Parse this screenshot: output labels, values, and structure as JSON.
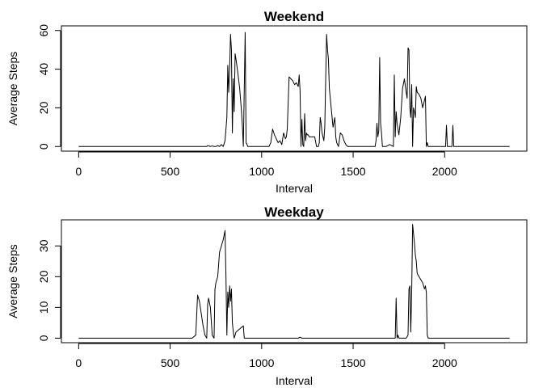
{
  "chart_data": [
    {
      "type": "line",
      "title": "Weekend",
      "xlabel": "Interval",
      "ylabel": "Average Steps",
      "xlim": [
        0,
        2355
      ],
      "ylim": [
        0,
        60
      ],
      "xticks": [
        0,
        500,
        1000,
        1500,
        2000
      ],
      "yticks": [
        0,
        20,
        40,
        60
      ],
      "grid": false,
      "series": [
        {
          "color": "#000000",
          "x": [
            0,
            700,
            705,
            720,
            730,
            740,
            750,
            760,
            770,
            780,
            790,
            800,
            810,
            815,
            820,
            825,
            830,
            835,
            840,
            845,
            850,
            855,
            860,
            870,
            880,
            890,
            895,
            900,
            905,
            910,
            915,
            920,
            925,
            930,
            1000,
            1040,
            1050,
            1060,
            1070,
            1080,
            1090,
            1100,
            1110,
            1120,
            1130,
            1135,
            1140,
            1150,
            1160,
            1170,
            1180,
            1190,
            1200,
            1205,
            1210,
            1215,
            1220,
            1225,
            1230,
            1235,
            1240,
            1245,
            1250,
            1255,
            1260,
            1270,
            1280,
            1290,
            1300,
            1310,
            1315,
            1320,
            1325,
            1330,
            1335,
            1340,
            1345,
            1350,
            1355,
            1360,
            1365,
            1370,
            1380,
            1390,
            1400,
            1405,
            1410,
            1420,
            1430,
            1440,
            1450,
            1460,
            1470,
            1480,
            1490,
            1500,
            1520,
            1540,
            1560,
            1580,
            1600,
            1620,
            1625,
            1630,
            1635,
            1640,
            1645,
            1650,
            1655,
            1660,
            1680,
            1700,
            1720,
            1725,
            1730,
            1735,
            1740,
            1750,
            1760,
            1770,
            1780,
            1790,
            1795,
            1800,
            1805,
            1810,
            1815,
            1820,
            1825,
            1830,
            1835,
            1840,
            1845,
            1850,
            1860,
            1870,
            1880,
            1890,
            1895,
            1900,
            1905,
            1910,
            1915,
            1920,
            1930,
            1950,
            1970,
            1990,
            2000,
            2005,
            2010,
            2015,
            2020,
            2030,
            2035,
            2040,
            2045,
            2050,
            2060,
            2100,
            2200,
            2300,
            2355
          ],
          "y": [
            0,
            0,
            0.5,
            0,
            0.3,
            0,
            0,
            0.5,
            0,
            1,
            0,
            3,
            15,
            42,
            28,
            40,
            58,
            50,
            7,
            35,
            18,
            48,
            45,
            38,
            30,
            18,
            10,
            0,
            30,
            59,
            2,
            1,
            0,
            0,
            0,
            0,
            2,
            9,
            6,
            4,
            2,
            3,
            1,
            7,
            4,
            5,
            9,
            36,
            35,
            34,
            32,
            33,
            31,
            37,
            29,
            0,
            14,
            1,
            0,
            17,
            3,
            7,
            6,
            6,
            5,
            5,
            5,
            5,
            0,
            0,
            2,
            15,
            12,
            7,
            5,
            3,
            10,
            35,
            58,
            50,
            45,
            30,
            20,
            10,
            15,
            5,
            2,
            0,
            7,
            6,
            3,
            1,
            0,
            0,
            0,
            0,
            0,
            0,
            0,
            0,
            0,
            0,
            3,
            12,
            5,
            8,
            46,
            12,
            7,
            0,
            0,
            1,
            0,
            37,
            5,
            18,
            12,
            6,
            15,
            30,
            35,
            28,
            25,
            51,
            50,
            20,
            15,
            32,
            0,
            20,
            18,
            15,
            31,
            28,
            27,
            25,
            20,
            24,
            26,
            0,
            2,
            0,
            0,
            0,
            0,
            0,
            0,
            0,
            0,
            0,
            11,
            0,
            0,
            0,
            0,
            0,
            11,
            0,
            0,
            0,
            0,
            0,
            0
          ]
        }
      ]
    },
    {
      "type": "line",
      "title": "Weekday",
      "xlabel": "Interval",
      "ylabel": "Average Steps",
      "xlim": [
        0,
        2355
      ],
      "ylim": [
        0,
        37
      ],
      "xticks": [
        0,
        500,
        1000,
        1500,
        2000
      ],
      "yticks": [
        0,
        10,
        20,
        30
      ],
      "grid": false,
      "series": [
        {
          "color": "#000000",
          "x": [
            0,
            600,
            620,
            630,
            640,
            650,
            660,
            670,
            680,
            690,
            700,
            705,
            710,
            720,
            730,
            740,
            745,
            750,
            760,
            770,
            780,
            790,
            800,
            805,
            810,
            815,
            820,
            825,
            830,
            835,
            840,
            845,
            850,
            855,
            860,
            880,
            900,
            905,
            910,
            1000,
            1100,
            1200,
            1210,
            1220,
            1300,
            1400,
            1500,
            1600,
            1700,
            1730,
            1735,
            1740,
            1745,
            1750,
            1760,
            1780,
            1790,
            1800,
            1805,
            1810,
            1815,
            1820,
            1825,
            1830,
            1835,
            1840,
            1845,
            1850,
            1860,
            1870,
            1880,
            1890,
            1895,
            1900,
            1905,
            1910,
            1915,
            1920,
            2000,
            2100,
            2200,
            2300,
            2355
          ],
          "y": [
            0,
            0,
            0,
            0.5,
            1,
            14,
            12,
            8,
            4,
            1,
            0,
            11,
            13,
            10,
            1,
            0,
            16,
            18,
            20,
            28,
            30,
            32,
            35,
            20,
            1,
            15,
            10,
            17,
            12,
            16,
            5,
            2,
            0,
            1,
            2,
            3,
            4,
            0,
            0,
            0,
            0,
            0,
            0.3,
            0,
            0,
            0,
            0,
            0,
            0,
            0,
            13,
            0,
            1,
            0,
            0,
            0,
            0,
            1,
            16,
            17,
            2,
            15,
            37,
            34,
            31,
            27,
            25,
            21,
            20,
            19,
            18,
            16,
            17,
            15,
            1,
            0,
            0,
            0,
            0,
            0,
            0,
            0,
            0
          ]
        }
      ]
    }
  ]
}
